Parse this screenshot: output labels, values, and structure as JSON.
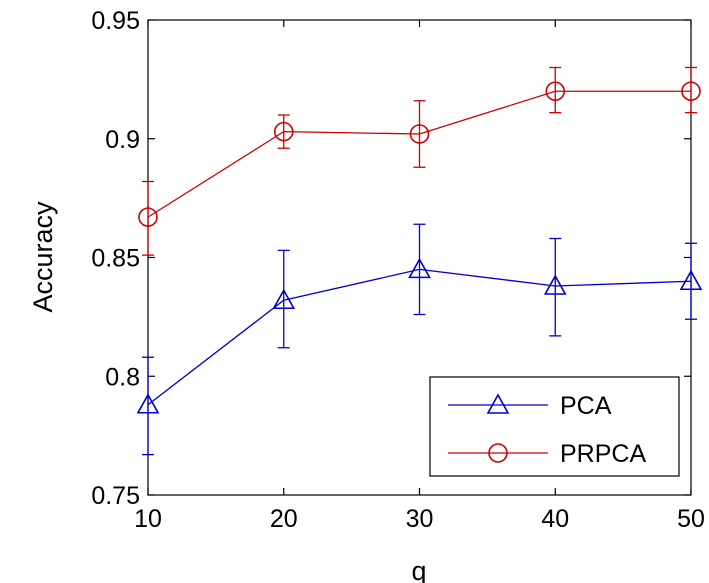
{
  "chart_data": {
    "type": "line",
    "xlabel": "q",
    "ylabel": "Accuracy",
    "x": [
      10,
      20,
      30,
      40,
      50
    ],
    "xlim": [
      10,
      50
    ],
    "ylim": [
      0.75,
      0.95
    ],
    "xticks": [
      "10",
      "20",
      "30",
      "40",
      "50"
    ],
    "yticks": [
      "0.75",
      "0.8",
      "0.85",
      "0.9",
      "0.95"
    ],
    "grid": false,
    "legend_position": "bottom-right",
    "series": [
      {
        "name": "PCA",
        "color": "#0000cc",
        "marker": "triangle",
        "values": [
          0.788,
          0.832,
          0.845,
          0.838,
          0.84
        ],
        "error_low": [
          0.767,
          0.812,
          0.826,
          0.817,
          0.824
        ],
        "error_high": [
          0.808,
          0.853,
          0.864,
          0.858,
          0.856
        ]
      },
      {
        "name": "PRPCA",
        "color": "#cc0000",
        "marker": "circle",
        "values": [
          0.867,
          0.903,
          0.902,
          0.92,
          0.92
        ],
        "error_low": [
          0.851,
          0.896,
          0.888,
          0.911,
          0.911
        ],
        "error_high": [
          0.882,
          0.91,
          0.916,
          0.93,
          0.93
        ]
      }
    ]
  }
}
